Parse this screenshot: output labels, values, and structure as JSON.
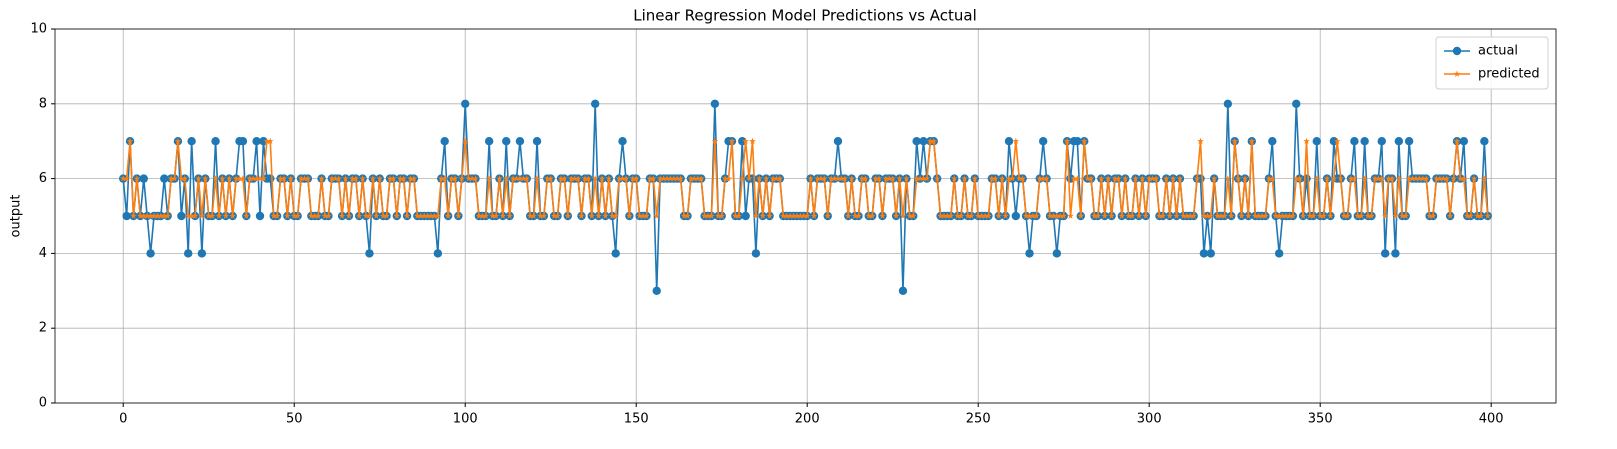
{
  "chart_data": {
    "type": "line",
    "title": "Linear Regression Model Predictions vs Actual",
    "ylabel": "output",
    "xlim": [
      -19.95,
      418.95
    ],
    "xticks": [
      0,
      50,
      100,
      150,
      200,
      250,
      300,
      350,
      400
    ],
    "ylim": [
      0,
      10
    ],
    "yticks": [
      0,
      2,
      4,
      6,
      8,
      10
    ],
    "grid": true,
    "legend": "upper right",
    "x": [
      0,
      1,
      2,
      3,
      4,
      5,
      6,
      7,
      8,
      9,
      10,
      11,
      12,
      13,
      14,
      15,
      16,
      17,
      18,
      19,
      20,
      21,
      22,
      23,
      24,
      25,
      26,
      27,
      28,
      29,
      30,
      31,
      32,
      33,
      34,
      35,
      36,
      37,
      38,
      39,
      40,
      41,
      42,
      43,
      44,
      45,
      46,
      47,
      48,
      49,
      50,
      51,
      52,
      53,
      54,
      55,
      56,
      57,
      58,
      59,
      60,
      61,
      62,
      63,
      64,
      65,
      66,
      67,
      68,
      69,
      70,
      71,
      72,
      73,
      74,
      75,
      76,
      77,
      78,
      79,
      80,
      81,
      82,
      83,
      84,
      85,
      86,
      87,
      88,
      89,
      90,
      91,
      92,
      93,
      94,
      95,
      96,
      97,
      98,
      99,
      100,
      101,
      102,
      103,
      104,
      105,
      106,
      107,
      108,
      109,
      110,
      111,
      112,
      113,
      114,
      115,
      116,
      117,
      118,
      119,
      120,
      121,
      122,
      123,
      124,
      125,
      126,
      127,
      128,
      129,
      130,
      131,
      132,
      133,
      134,
      135,
      136,
      137,
      138,
      139,
      140,
      141,
      142,
      143,
      144,
      145,
      146,
      147,
      148,
      149,
      150,
      151,
      152,
      153,
      154,
      155,
      156,
      157,
      158,
      159,
      160,
      161,
      162,
      163,
      164,
      165,
      166,
      167,
      168,
      169,
      170,
      171,
      172,
      173,
      174,
      175,
      176,
      177,
      178,
      179,
      180,
      181,
      182,
      183,
      184,
      185,
      186,
      187,
      188,
      189,
      190,
      191,
      192,
      193,
      194,
      195,
      196,
      197,
      198,
      199,
      200,
      201,
      202,
      203,
      204,
      205,
      206,
      207,
      208,
      209,
      210,
      211,
      212,
      213,
      214,
      215,
      216,
      217,
      218,
      219,
      220,
      221,
      222,
      223,
      224,
      225,
      226,
      227,
      228,
      229,
      230,
      231,
      232,
      233,
      234,
      235,
      236,
      237,
      238,
      239,
      240,
      241,
      242,
      243,
      244,
      245,
      246,
      247,
      248,
      249,
      250,
      251,
      252,
      253,
      254,
      255,
      256,
      257,
      258,
      259,
      260,
      261,
      262,
      263,
      264,
      265,
      266,
      267,
      268,
      269,
      270,
      271,
      272,
      273,
      274,
      275,
      276,
      277,
      278,
      279,
      280,
      281,
      282,
      283,
      284,
      285,
      286,
      287,
      288,
      289,
      290,
      291,
      292,
      293,
      294,
      295,
      296,
      297,
      298,
      299,
      300,
      301,
      302,
      303,
      304,
      305,
      306,
      307,
      308,
      309,
      310,
      311,
      312,
      313,
      314,
      315,
      316,
      317,
      318,
      319,
      320,
      321,
      322,
      323,
      324,
      325,
      326,
      327,
      328,
      329,
      330,
      331,
      332,
      333,
      334,
      335,
      336,
      337,
      338,
      339,
      340,
      341,
      342,
      343,
      344,
      345,
      346,
      347,
      348,
      349,
      350,
      351,
      352,
      353,
      354,
      355,
      356,
      357,
      358,
      359,
      360,
      361,
      362,
      363,
      364,
      365,
      366,
      367,
      368,
      369,
      370,
      371,
      372,
      373,
      374,
      375,
      376,
      377,
      378,
      379,
      380,
      381,
      382,
      383,
      384,
      385,
      386,
      387,
      388,
      389,
      390,
      391,
      392,
      393,
      394,
      395,
      396,
      397,
      398,
      399
    ],
    "series": [
      {
        "name": "actual",
        "color": "#1f77b4",
        "marker": "circle",
        "values": [
          6,
          5,
          7,
          5,
          6,
          5,
          6,
          5,
          4,
          5,
          5,
          5,
          6,
          5,
          6,
          6,
          7,
          5,
          6,
          4,
          7,
          5,
          6,
          4,
          6,
          5,
          5,
          7,
          5,
          6,
          5,
          6,
          5,
          6,
          7,
          7,
          5,
          6,
          6,
          7,
          5,
          7,
          6,
          6,
          5,
          5,
          6,
          6,
          5,
          6,
          5,
          5,
          6,
          6,
          6,
          5,
          5,
          5,
          6,
          5,
          5,
          6,
          6,
          6,
          5,
          6,
          5,
          6,
          6,
          5,
          6,
          5,
          4,
          6,
          5,
          6,
          5,
          5,
          6,
          6,
          5,
          6,
          6,
          5,
          6,
          6,
          5,
          5,
          5,
          5,
          5,
          5,
          4,
          6,
          7,
          5,
          6,
          6,
          5,
          6,
          8,
          6,
          6,
          6,
          5,
          5,
          5,
          7,
          5,
          5,
          6,
          5,
          7,
          5,
          6,
          6,
          7,
          6,
          6,
          5,
          5,
          7,
          5,
          5,
          6,
          6,
          5,
          5,
          6,
          6,
          5,
          6,
          6,
          6,
          5,
          6,
          6,
          5,
          8,
          5,
          6,
          5,
          6,
          5,
          4,
          6,
          7,
          6,
          5,
          6,
          6,
          5,
          5,
          5,
          6,
          6,
          3,
          6,
          6,
          6,
          6,
          6,
          6,
          6,
          5,
          5,
          6,
          6,
          6,
          6,
          5,
          5,
          5,
          8,
          5,
          5,
          6,
          7,
          7,
          5,
          5,
          7,
          5,
          6,
          6,
          4,
          6,
          5,
          6,
          5,
          6,
          6,
          6,
          5,
          5,
          5,
          5,
          5,
          5,
          5,
          5,
          6,
          5,
          6,
          6,
          6,
          5,
          6,
          6,
          7,
          6,
          6,
          5,
          6,
          5,
          5,
          6,
          6,
          5,
          5,
          6,
          6,
          5,
          6,
          6,
          6,
          5,
          6,
          3,
          6,
          5,
          5,
          7,
          6,
          7,
          6,
          7,
          7,
          6,
          5,
          5,
          5,
          5,
          6,
          5,
          5,
          6,
          5,
          5,
          6,
          5,
          5,
          5,
          5,
          6,
          6,
          5,
          6,
          5,
          7,
          6,
          5,
          6,
          6,
          5,
          4,
          5,
          5,
          6,
          7,
          6,
          5,
          5,
          4,
          5,
          5,
          7,
          6,
          7,
          7,
          5,
          7,
          6,
          6,
          5,
          5,
          6,
          5,
          6,
          5,
          6,
          6,
          5,
          6,
          5,
          5,
          6,
          5,
          6,
          5,
          6,
          6,
          6,
          5,
          5,
          6,
          5,
          6,
          5,
          6,
          5,
          5,
          5,
          5,
          6,
          6,
          4,
          5,
          4,
          6,
          5,
          5,
          5,
          8,
          5,
          7,
          6,
          5,
          6,
          5,
          7,
          5,
          5,
          5,
          5,
          6,
          7,
          5,
          4,
          5,
          5,
          5,
          5,
          8,
          6,
          5,
          6,
          5,
          5,
          7,
          5,
          5,
          6,
          5,
          7,
          6,
          6,
          5,
          5,
          6,
          7,
          5,
          5,
          7,
          5,
          5,
          6,
          6,
          7,
          4,
          6,
          6,
          4,
          7,
          5,
          5,
          7,
          6,
          6,
          6,
          6,
          6,
          5,
          5,
          6,
          6,
          6,
          6,
          5,
          6,
          7,
          6,
          7,
          5,
          5,
          6,
          5,
          5,
          7,
          5
        ]
      },
      {
        "name": "predicted",
        "color": "#ff7f0e",
        "marker": "star",
        "values": [
          6,
          6,
          7,
          5,
          6,
          5,
          5,
          5,
          5,
          5,
          5,
          5,
          5,
          5,
          6,
          6,
          7,
          6,
          6,
          5,
          5,
          5,
          6,
          5,
          6,
          5,
          5,
          6,
          5,
          6,
          5,
          6,
          5,
          6,
          6,
          6,
          5,
          6,
          6,
          6,
          6,
          6,
          7,
          7,
          5,
          5,
          6,
          6,
          5,
          6,
          5,
          5,
          6,
          6,
          6,
          5,
          5,
          5,
          6,
          5,
          5,
          6,
          6,
          6,
          5,
          6,
          5,
          6,
          6,
          5,
          6,
          5,
          5,
          6,
          5,
          6,
          5,
          5,
          6,
          6,
          5,
          6,
          6,
          5,
          6,
          6,
          5,
          5,
          5,
          5,
          5,
          5,
          5,
          6,
          6,
          5,
          6,
          6,
          5,
          6,
          7,
          6,
          6,
          6,
          5,
          5,
          5,
          6,
          5,
          5,
          6,
          5,
          6,
          5,
          6,
          6,
          6,
          6,
          6,
          5,
          5,
          6,
          5,
          5,
          6,
          6,
          5,
          5,
          6,
          6,
          5,
          6,
          6,
          6,
          5,
          6,
          6,
          5,
          6,
          5,
          6,
          5,
          6,
          5,
          5,
          6,
          6,
          6,
          5,
          6,
          6,
          5,
          5,
          5,
          6,
          6,
          5,
          6,
          6,
          6,
          6,
          6,
          6,
          6,
          5,
          5,
          6,
          6,
          6,
          6,
          5,
          5,
          5,
          7,
          5,
          5,
          6,
          6,
          7,
          5,
          5,
          6,
          7,
          6,
          7,
          5,
          6,
          5,
          6,
          5,
          6,
          6,
          6,
          5,
          5,
          5,
          5,
          5,
          5,
          5,
          5,
          6,
          5,
          6,
          6,
          6,
          5,
          6,
          6,
          6,
          6,
          6,
          5,
          6,
          5,
          5,
          6,
          6,
          5,
          5,
          6,
          6,
          5,
          6,
          6,
          6,
          5,
          6,
          5,
          6,
          5,
          5,
          6,
          6,
          6,
          6,
          7,
          7,
          6,
          5,
          5,
          5,
          5,
          6,
          5,
          5,
          6,
          5,
          5,
          6,
          5,
          5,
          5,
          5,
          6,
          6,
          5,
          6,
          5,
          6,
          6,
          7,
          6,
          6,
          5,
          5,
          5,
          5,
          6,
          6,
          6,
          5,
          5,
          5,
          5,
          5,
          7,
          5,
          6,
          6,
          5,
          7,
          6,
          6,
          5,
          5,
          6,
          5,
          6,
          5,
          6,
          6,
          5,
          6,
          5,
          5,
          6,
          5,
          6,
          5,
          6,
          6,
          6,
          5,
          5,
          6,
          5,
          6,
          5,
          6,
          5,
          5,
          5,
          5,
          6,
          7,
          5,
          5,
          5,
          6,
          5,
          5,
          5,
          6,
          5,
          7,
          6,
          5,
          6,
          5,
          7,
          5,
          5,
          5,
          5,
          6,
          6,
          5,
          5,
          5,
          5,
          5,
          5,
          6,
          6,
          5,
          7,
          5,
          5,
          6,
          5,
          5,
          6,
          5,
          6,
          7,
          6,
          5,
          5,
          6,
          6,
          5,
          5,
          6,
          5,
          5,
          6,
          6,
          6,
          5,
          6,
          6,
          5,
          6,
          5,
          5,
          6,
          6,
          6,
          6,
          6,
          6,
          5,
          5,
          6,
          6,
          6,
          6,
          5,
          6,
          7,
          6,
          6,
          5,
          5,
          6,
          5,
          5,
          6,
          5
        ]
      }
    ]
  }
}
